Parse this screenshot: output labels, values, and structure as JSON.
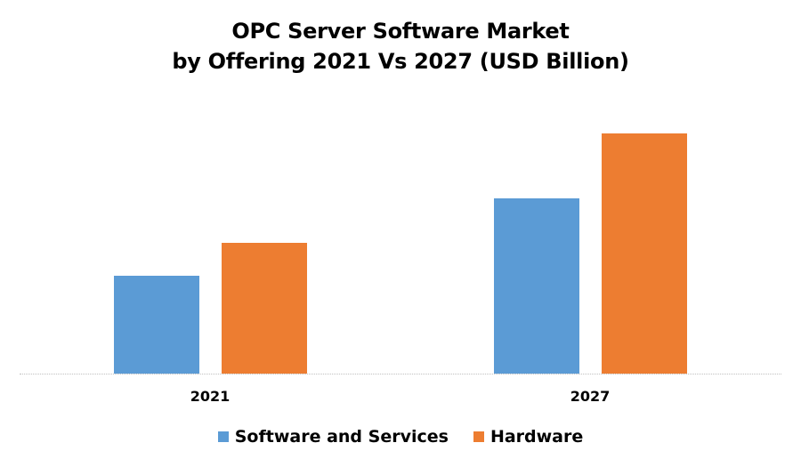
{
  "title_line1": "OPC Server Software Market",
  "title_line2": "by Offering 2021 Vs 2027 (USD Billion)",
  "colors": {
    "software": "#5b9bd5",
    "hardware": "#ed7d31",
    "baseline": "#bfbfbf"
  },
  "legend": [
    {
      "label": "Software and Services",
      "color": "#5b9bd5"
    },
    {
      "label": "Hardware",
      "color": "#ed7d31"
    }
  ],
  "categories": [
    "2021",
    "2027"
  ],
  "chart_data": {
    "type": "bar",
    "title": "OPC Server Software Market by Offering 2021 Vs 2027 (USD Billion)",
    "categories": [
      "2021",
      "2027"
    ],
    "series": [
      {
        "name": "Software and Services",
        "values": [
          1.1,
          1.97
        ]
      },
      {
        "name": "Hardware",
        "values": [
          1.47,
          2.7
        ]
      }
    ],
    "xlabel": "",
    "ylabel": "USD Billion",
    "ylim": [
      0,
      3.2
    ],
    "grid": false,
    "legend_position": "bottom",
    "note": "No y-axis shown; values estimated proportionally from bar heights"
  }
}
